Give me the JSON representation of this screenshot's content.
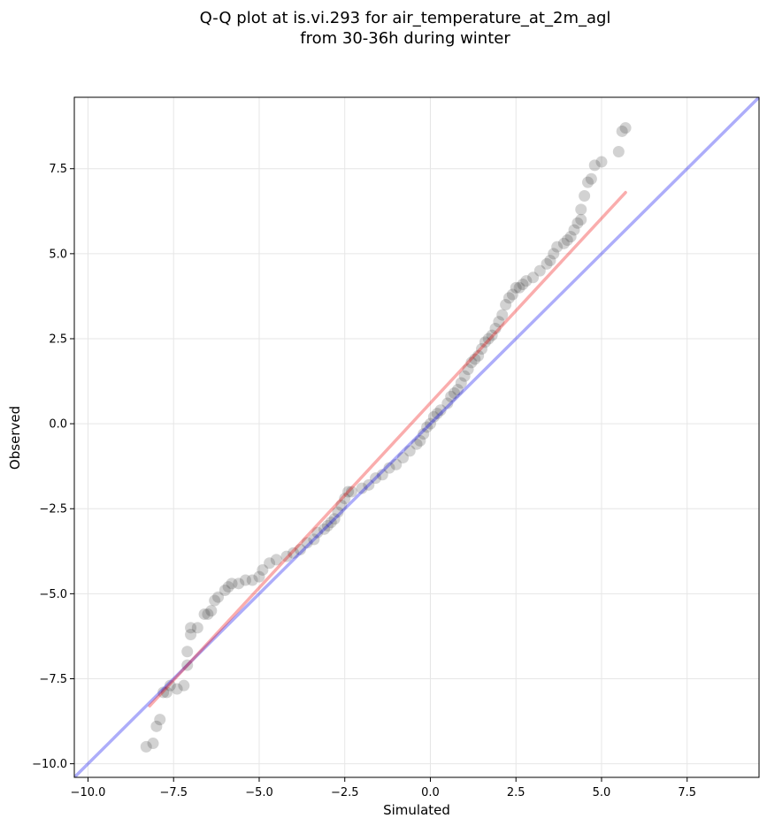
{
  "chart_data": {
    "type": "scatter",
    "title_lines": [
      "Q-Q plot at is.vi.293 for air_temperature_at_2m_agl",
      "from 30-36h during winter"
    ],
    "xlabel": "Simulated",
    "ylabel": "Observed",
    "xlim": [
      -10.4,
      9.6
    ],
    "ylim": [
      -10.4,
      9.6
    ],
    "x_ticks": [
      -10.0,
      -7.5,
      -5.0,
      -2.5,
      0.0,
      2.5,
      5.0,
      7.5
    ],
    "y_ticks": [
      -10.0,
      -7.5,
      -5.0,
      -2.5,
      0.0,
      2.5,
      5.0,
      7.5
    ],
    "x_tick_labels": [
      "−10.0",
      "−7.5",
      "−5.0",
      "−2.5",
      "0.0",
      "2.5",
      "5.0",
      "7.5"
    ],
    "y_tick_labels": [
      "−10.0",
      "−7.5",
      "−5.0",
      "−2.5",
      "0.0",
      "2.5",
      "5.0",
      "7.5"
    ],
    "grid": true,
    "colors": {
      "points": "#333333",
      "identity_line": "#0000ee",
      "fit_line": "#ee0000",
      "grid": "#e6e6e6",
      "axes": "#000000"
    },
    "lines": [
      {
        "role": "identity",
        "x": [
          -10.4,
          9.6
        ],
        "y": [
          -10.4,
          9.6
        ]
      },
      {
        "role": "fit",
        "x": [
          -8.2,
          5.7
        ],
        "y": [
          -8.3,
          6.8
        ]
      }
    ],
    "points": {
      "x": [
        -8.3,
        -8.1,
        -8.0,
        -7.9,
        -7.8,
        -7.7,
        -7.6,
        -7.4,
        -7.2,
        -7.1,
        -7.1,
        -7.0,
        -7.0,
        -6.8,
        -6.6,
        -6.5,
        -6.4,
        -6.3,
        -6.2,
        -6.0,
        -5.9,
        -5.8,
        -5.6,
        -5.4,
        -5.2,
        -5.0,
        -4.9,
        -4.7,
        -4.5,
        -4.2,
        -4.0,
        -3.8,
        -3.6,
        -3.4,
        -3.3,
        -3.1,
        -3.0,
        -2.9,
        -2.8,
        -2.7,
        -2.6,
        -2.5,
        -2.4,
        -2.3,
        -2.0,
        -1.8,
        -1.6,
        -1.4,
        -1.2,
        -1.0,
        -0.8,
        -0.6,
        -0.4,
        -0.3,
        -0.2,
        -0.1,
        0.0,
        0.1,
        0.2,
        0.3,
        0.5,
        0.6,
        0.7,
        0.8,
        0.9,
        1.0,
        1.1,
        1.2,
        1.3,
        1.4,
        1.5,
        1.6,
        1.7,
        1.8,
        1.9,
        2.0,
        2.1,
        2.2,
        2.3,
        2.4,
        2.5,
        2.6,
        2.7,
        2.8,
        3.0,
        3.2,
        3.4,
        3.5,
        3.6,
        3.7,
        3.9,
        4.0,
        4.1,
        4.2,
        4.3,
        4.4,
        4.4,
        4.5,
        4.6,
        4.7,
        4.8,
        5.0,
        5.5,
        5.6,
        5.7
      ],
      "y": [
        -9.5,
        -9.4,
        -8.9,
        -8.7,
        -7.9,
        -7.9,
        -7.7,
        -7.8,
        -7.7,
        -7.1,
        -6.7,
        -6.2,
        -6.0,
        -6.0,
        -5.6,
        -5.6,
        -5.5,
        -5.2,
        -5.1,
        -4.9,
        -4.8,
        -4.7,
        -4.7,
        -4.6,
        -4.6,
        -4.5,
        -4.3,
        -4.1,
        -4.0,
        -3.9,
        -3.8,
        -3.7,
        -3.5,
        -3.4,
        -3.2,
        -3.1,
        -3.0,
        -2.9,
        -2.8,
        -2.6,
        -2.4,
        -2.2,
        -2.0,
        -2.0,
        -1.9,
        -1.8,
        -1.6,
        -1.5,
        -1.3,
        -1.2,
        -1.0,
        -0.8,
        -0.6,
        -0.5,
        -0.3,
        -0.1,
        0.0,
        0.2,
        0.3,
        0.4,
        0.6,
        0.8,
        0.9,
        1.0,
        1.2,
        1.4,
        1.6,
        1.8,
        1.9,
        2.0,
        2.2,
        2.4,
        2.5,
        2.6,
        2.8,
        3.0,
        3.2,
        3.5,
        3.7,
        3.8,
        4.0,
        4.0,
        4.1,
        4.2,
        4.3,
        4.5,
        4.7,
        4.8,
        5.0,
        5.2,
        5.3,
        5.4,
        5.5,
        5.7,
        5.9,
        6.0,
        6.3,
        6.7,
        7.1,
        7.2,
        7.6,
        7.7,
        8.0,
        8.6,
        8.7
      ]
    }
  }
}
